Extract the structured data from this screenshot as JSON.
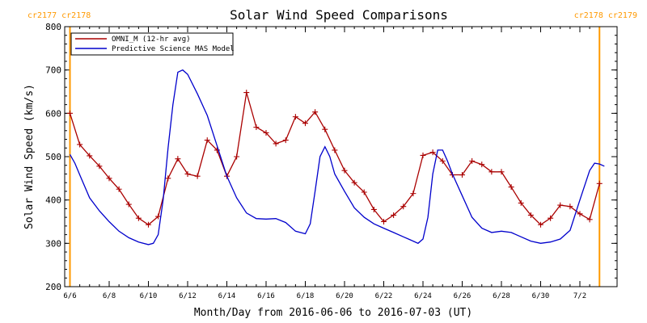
{
  "chart_data": {
    "type": "line",
    "title": "Solar Wind Speed Comparisons",
    "xlabel": "Month/Day from 2016-06-06 to 2016-07-03 (UT)",
    "ylabel": "Solar Wind Speed (km/s)",
    "ylim": [
      200,
      800
    ],
    "xlim": [
      "2016-06-06",
      "2016-07-03"
    ],
    "y_ticks": [
      "200",
      "300",
      "400",
      "500",
      "600",
      "700",
      "800"
    ],
    "x_ticks": [
      "6/6",
      "6/8",
      "6/10",
      "6/12",
      "6/14",
      "6/16",
      "6/18",
      "6/20",
      "6/22",
      "6/24",
      "6/26",
      "6/28",
      "6/30",
      "7/2"
    ],
    "x_tick_dates": [
      "2016-06-06",
      "2016-06-08",
      "2016-06-10",
      "2016-06-12",
      "2016-06-14",
      "2016-06-16",
      "2016-06-18",
      "2016-06-20",
      "2016-06-22",
      "2016-06-24",
      "2016-06-26",
      "2016-06-28",
      "2016-06-30",
      "2016-07-02"
    ],
    "grid": false,
    "legend_position": "top-left",
    "carrington_labels": {
      "left": "cr2177 cr2178",
      "right": "cr2178 cr2179",
      "left_boundary_date": "2016-06-06",
      "right_boundary_date": "2016-07-03",
      "color": "#ff9900"
    },
    "series": [
      {
        "name": "OMNI_M (12-hr avg)",
        "color": "#aa0000",
        "marker": "plus",
        "points": [
          [
            "2016-06-06 00:00",
            600
          ],
          [
            "2016-06-06 12:00",
            528
          ],
          [
            "2016-06-07 00:00",
            502
          ],
          [
            "2016-06-07 12:00",
            478
          ],
          [
            "2016-06-08 00:00",
            450
          ],
          [
            "2016-06-08 12:00",
            425
          ],
          [
            "2016-06-09 00:00",
            390
          ],
          [
            "2016-06-09 12:00",
            358
          ],
          [
            "2016-06-10 00:00",
            343
          ],
          [
            "2016-06-10 12:00",
            362
          ],
          [
            "2016-06-11 00:00",
            450
          ],
          [
            "2016-06-11 12:00",
            495
          ],
          [
            "2016-06-12 00:00",
            460
          ],
          [
            "2016-06-12 12:00",
            455
          ],
          [
            "2016-06-13 00:00",
            538
          ],
          [
            "2016-06-13 12:00",
            515
          ],
          [
            "2016-06-14 00:00",
            455
          ],
          [
            "2016-06-14 12:00",
            500
          ],
          [
            "2016-06-15 00:00",
            648
          ],
          [
            "2016-06-15 12:00",
            568
          ],
          [
            "2016-06-16 00:00",
            555
          ],
          [
            "2016-06-16 12:00",
            530
          ],
          [
            "2016-06-17 00:00",
            538
          ],
          [
            "2016-06-17 12:00",
            592
          ],
          [
            "2016-06-18 00:00",
            577
          ],
          [
            "2016-06-18 12:00",
            603
          ],
          [
            "2016-06-19 00:00",
            563
          ],
          [
            "2016-06-19 12:00",
            515
          ],
          [
            "2016-06-20 00:00",
            468
          ],
          [
            "2016-06-20 12:00",
            440
          ],
          [
            "2016-06-21 00:00",
            418
          ],
          [
            "2016-06-21 12:00",
            378
          ],
          [
            "2016-06-22 00:00",
            350
          ],
          [
            "2016-06-22 12:00",
            365
          ],
          [
            "2016-06-23 00:00",
            385
          ],
          [
            "2016-06-23 12:00",
            415
          ],
          [
            "2016-06-24 00:00",
            503
          ],
          [
            "2016-06-24 12:00",
            510
          ],
          [
            "2016-06-25 00:00",
            490
          ],
          [
            "2016-06-25 12:00",
            458
          ],
          [
            "2016-06-26 00:00",
            458
          ],
          [
            "2016-06-26 12:00",
            490
          ],
          [
            "2016-06-27 00:00",
            482
          ],
          [
            "2016-06-27 12:00",
            465
          ],
          [
            "2016-06-28 00:00",
            465
          ],
          [
            "2016-06-28 12:00",
            430
          ],
          [
            "2016-06-29 00:00",
            393
          ],
          [
            "2016-06-29 12:00",
            365
          ],
          [
            "2016-06-30 00:00",
            343
          ],
          [
            "2016-06-30 12:00",
            358
          ],
          [
            "2016-07-01 00:00",
            388
          ],
          [
            "2016-07-01 12:00",
            385
          ],
          [
            "2016-07-02 00:00",
            368
          ],
          [
            "2016-07-02 12:00",
            355
          ],
          [
            "2016-07-03 00:00",
            438
          ]
        ]
      },
      {
        "name": "Predictive Science MAS Model",
        "color": "#0000cc",
        "marker": "none",
        "points": [
          [
            "2016-06-06 00:00",
            505
          ],
          [
            "2016-06-06 06:00",
            485
          ],
          [
            "2016-06-06 12:00",
            458
          ],
          [
            "2016-06-07 00:00",
            405
          ],
          [
            "2016-06-07 12:00",
            375
          ],
          [
            "2016-06-08 00:00",
            350
          ],
          [
            "2016-06-08 12:00",
            328
          ],
          [
            "2016-06-09 00:00",
            313
          ],
          [
            "2016-06-09 12:00",
            303
          ],
          [
            "2016-06-10 00:00",
            297
          ],
          [
            "2016-06-10 06:00",
            300
          ],
          [
            "2016-06-10 12:00",
            320
          ],
          [
            "2016-06-10 18:00",
            400
          ],
          [
            "2016-06-11 00:00",
            520
          ],
          [
            "2016-06-11 06:00",
            620
          ],
          [
            "2016-06-11 12:00",
            695
          ],
          [
            "2016-06-11 18:00",
            700
          ],
          [
            "2016-06-12 00:00",
            690
          ],
          [
            "2016-06-12 12:00",
            645
          ],
          [
            "2016-06-13 00:00",
            595
          ],
          [
            "2016-06-13 12:00",
            525
          ],
          [
            "2016-06-14 00:00",
            455
          ],
          [
            "2016-06-14 12:00",
            405
          ],
          [
            "2016-06-15 00:00",
            370
          ],
          [
            "2016-06-15 12:00",
            357
          ],
          [
            "2016-06-16 00:00",
            356
          ],
          [
            "2016-06-16 12:00",
            357
          ],
          [
            "2016-06-17 00:00",
            348
          ],
          [
            "2016-06-17 12:00",
            328
          ],
          [
            "2016-06-18 00:00",
            322
          ],
          [
            "2016-06-18 06:00",
            345
          ],
          [
            "2016-06-18 12:00",
            420
          ],
          [
            "2016-06-18 18:00",
            500
          ],
          [
            "2016-06-19 00:00",
            523
          ],
          [
            "2016-06-19 06:00",
            500
          ],
          [
            "2016-06-19 12:00",
            460
          ],
          [
            "2016-06-20 00:00",
            420
          ],
          [
            "2016-06-20 12:00",
            382
          ],
          [
            "2016-06-21 00:00",
            360
          ],
          [
            "2016-06-21 12:00",
            345
          ],
          [
            "2016-06-22 00:00",
            335
          ],
          [
            "2016-06-22 12:00",
            325
          ],
          [
            "2016-06-23 00:00",
            315
          ],
          [
            "2016-06-23 12:00",
            305
          ],
          [
            "2016-06-23 18:00",
            300
          ],
          [
            "2016-06-24 00:00",
            310
          ],
          [
            "2016-06-24 06:00",
            360
          ],
          [
            "2016-06-24 12:00",
            460
          ],
          [
            "2016-06-24 18:00",
            515
          ],
          [
            "2016-06-25 00:00",
            515
          ],
          [
            "2016-06-25 06:00",
            490
          ],
          [
            "2016-06-25 12:00",
            460
          ],
          [
            "2016-06-26 00:00",
            410
          ],
          [
            "2016-06-26 12:00",
            360
          ],
          [
            "2016-06-27 00:00",
            335
          ],
          [
            "2016-06-27 12:00",
            325
          ],
          [
            "2016-06-28 00:00",
            328
          ],
          [
            "2016-06-28 12:00",
            325
          ],
          [
            "2016-06-29 00:00",
            315
          ],
          [
            "2016-06-29 12:00",
            305
          ],
          [
            "2016-06-30 00:00",
            300
          ],
          [
            "2016-06-30 12:00",
            303
          ],
          [
            "2016-07-01 00:00",
            310
          ],
          [
            "2016-07-01 12:00",
            330
          ],
          [
            "2016-07-02 00:00",
            400
          ],
          [
            "2016-07-02 12:00",
            468
          ],
          [
            "2016-07-02 18:00",
            485
          ],
          [
            "2016-07-03 00:00",
            483
          ],
          [
            "2016-07-03 06:00",
            478
          ]
        ]
      }
    ]
  }
}
